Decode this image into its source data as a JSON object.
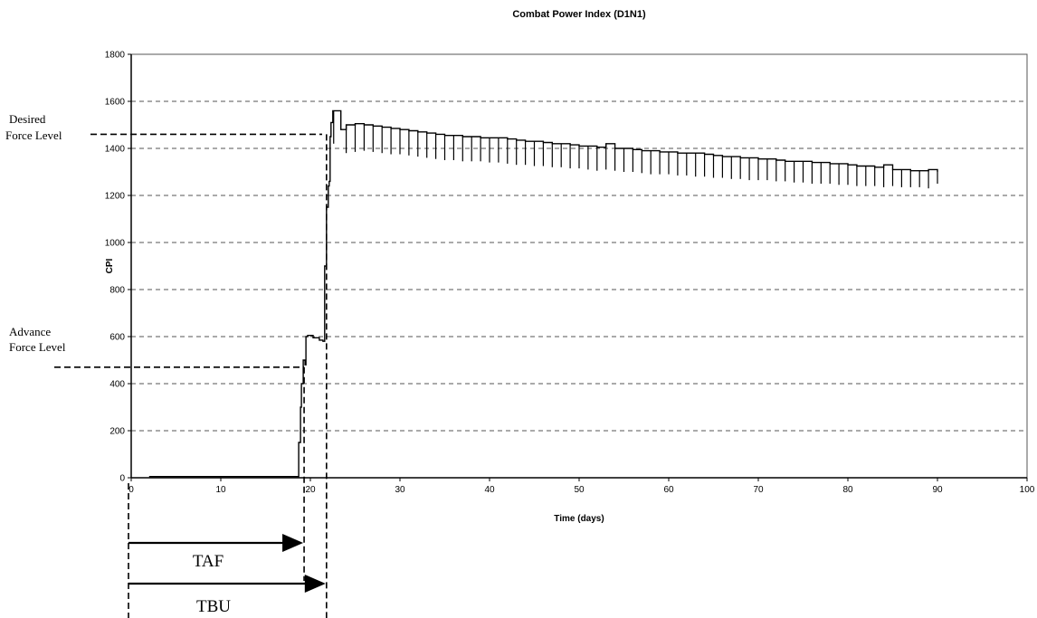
{
  "chart_data": {
    "type": "line",
    "title": "Combat Power Index (D1N1)",
    "xlabel": "Time (days)",
    "ylabel": "CPI",
    "xlim": [
      0,
      100
    ],
    "ylim": [
      0,
      1800
    ],
    "x_ticks": [
      0,
      10,
      20,
      30,
      40,
      50,
      60,
      70,
      80,
      90,
      100
    ],
    "y_ticks": [
      0,
      200,
      400,
      600,
      800,
      1000,
      1200,
      1400,
      1600,
      1800
    ],
    "grid": "horizontal dashed",
    "colors": {
      "line": "#000000",
      "grid": "#555555",
      "background": "#ffffff"
    },
    "series": [
      {
        "name": "",
        "x": [
          2,
          18.6,
          18.7,
          18.9,
          19.0,
          19.2,
          19.4,
          19.5,
          19.7,
          20.3,
          21.0,
          21.4,
          21.6,
          21.8,
          22.0,
          22.1,
          22.2,
          22.3,
          22.5,
          22.6,
          23.4,
          24,
          25,
          26,
          27,
          28,
          29,
          30,
          31,
          32,
          33,
          34,
          35,
          36,
          37,
          38,
          39,
          40,
          41,
          42,
          43,
          44,
          45,
          46,
          47,
          48,
          49,
          50,
          51,
          52,
          53,
          54,
          55,
          56,
          57,
          58,
          59,
          60,
          61,
          62,
          63,
          64,
          65,
          66,
          67,
          68,
          69,
          70,
          71,
          72,
          73,
          74,
          75,
          76,
          77,
          78,
          79,
          80,
          81,
          82,
          83,
          84,
          85,
          86,
          87,
          88,
          89,
          90
        ],
        "y": [
          5,
          5,
          150,
          300,
          400,
          500,
          480,
          600,
          605,
          595,
          585,
          580,
          900,
          1150,
          1240,
          1260,
          1450,
          1510,
          1560,
          1560,
          1480,
          1500,
          1505,
          1500,
          1495,
          1490,
          1485,
          1480,
          1475,
          1470,
          1465,
          1460,
          1455,
          1455,
          1450,
          1450,
          1445,
          1445,
          1445,
          1440,
          1435,
          1430,
          1430,
          1425,
          1420,
          1420,
          1415,
          1410,
          1410,
          1405,
          1420,
          1400,
          1400,
          1395,
          1390,
          1390,
          1385,
          1385,
          1380,
          1380,
          1380,
          1375,
          1370,
          1365,
          1365,
          1360,
          1360,
          1355,
          1355,
          1350,
          1345,
          1345,
          1345,
          1340,
          1340,
          1335,
          1335,
          1330,
          1325,
          1325,
          1320,
          1330,
          1310,
          1310,
          1305,
          1305,
          1310,
          1300
        ]
      }
    ],
    "dips": {
      "x": [
        22.6,
        24,
        25,
        26,
        27,
        28,
        29,
        30,
        31,
        32,
        33,
        34,
        35,
        36,
        37,
        38,
        39,
        40,
        41,
        42,
        43,
        44,
        45,
        46,
        47,
        48,
        49,
        50,
        51,
        52,
        53,
        54,
        55,
        56,
        57,
        58,
        59,
        60,
        61,
        62,
        63,
        64,
        65,
        66,
        67,
        68,
        69,
        70,
        71,
        72,
        73,
        74,
        75,
        76,
        77,
        78,
        79,
        80,
        81,
        82,
        83,
        84,
        85,
        86,
        87,
        88,
        89,
        90
      ],
      "y": [
        1420,
        1380,
        1385,
        1390,
        1385,
        1380,
        1375,
        1375,
        1370,
        1365,
        1360,
        1355,
        1350,
        1350,
        1345,
        1345,
        1345,
        1340,
        1340,
        1335,
        1330,
        1330,
        1325,
        1325,
        1320,
        1320,
        1315,
        1315,
        1310,
        1305,
        1310,
        1305,
        1300,
        1300,
        1295,
        1290,
        1290,
        1290,
        1285,
        1285,
        1280,
        1280,
        1275,
        1275,
        1270,
        1270,
        1265,
        1265,
        1265,
        1260,
        1260,
        1255,
        1255,
        1250,
        1250,
        1250,
        1245,
        1245,
        1240,
        1240,
        1240,
        1235,
        1240,
        1235,
        1235,
        1235,
        1230,
        1250
      ]
    }
  },
  "annotations": {
    "desired_label_1": "Desired",
    "desired_label_2": "Force Level",
    "desired_value": 1460,
    "advance_label_1": "Advance",
    "advance_label_2": "Force Level",
    "advance_value": 470,
    "taf_label": "TAF",
    "taf_x": 19.3,
    "tbu_label": "TBU",
    "tbu_x": 21.8
  }
}
